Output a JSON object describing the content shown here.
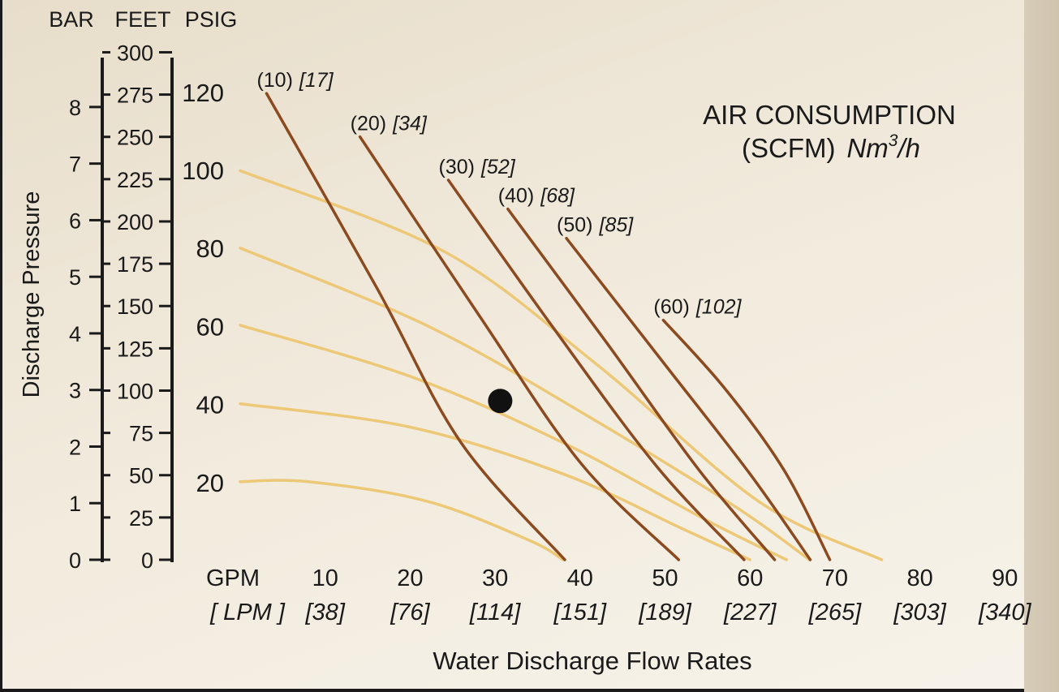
{
  "chart_data": {
    "type": "line",
    "title": "AIR CONSUMPTION",
    "subtitle": {
      "prefix": "(SCFM)",
      "unit": "Nm",
      "sup": "3",
      "suffix": "/h"
    },
    "xlabel": "Water Discharge Flow Rates",
    "ylabel": "Discharge Pressure",
    "axis_headers": {
      "bar": "BAR",
      "feet": "FEET",
      "psig": "PSIG"
    },
    "x_axis": {
      "unit_primary": "GPM",
      "unit_secondary": "[ LPM ]",
      "ticks": [
        {
          "gpm": 10,
          "lpm": "[38]"
        },
        {
          "gpm": 20,
          "lpm": "[76]"
        },
        {
          "gpm": 30,
          "lpm": "[114]"
        },
        {
          "gpm": 40,
          "lpm": "[151]"
        },
        {
          "gpm": 50,
          "lpm": "[189]"
        },
        {
          "gpm": 60,
          "lpm": "[227]"
        },
        {
          "gpm": 70,
          "lpm": "[265]"
        },
        {
          "gpm": 80,
          "lpm": "[303]"
        },
        {
          "gpm": 90,
          "lpm": "[340]"
        }
      ],
      "xlim": [
        0,
        92
      ]
    },
    "y_axes": {
      "bar": [
        0,
        1,
        2,
        3,
        4,
        5,
        6,
        7,
        8
      ],
      "feet": [
        0,
        25,
        50,
        75,
        100,
        125,
        150,
        175,
        200,
        225,
        250,
        275,
        300
      ],
      "psig": [
        20,
        40,
        60,
        80,
        100,
        120
      ],
      "ylim_psig": [
        0,
        128
      ]
    },
    "air_curves": [
      {
        "label": "(10)",
        "metric": "[17]",
        "points": [
          [
            3.1,
            119.5
          ],
          [
            16,
            70
          ],
          [
            26,
            30
          ],
          [
            38.2,
            0
          ]
        ]
      },
      {
        "label": "(20)",
        "metric": "[34]",
        "points": [
          [
            14.1,
            108.4
          ],
          [
            28,
            63
          ],
          [
            40,
            25
          ],
          [
            51.6,
            0
          ]
        ]
      },
      {
        "label": "(30)",
        "metric": "[52]",
        "points": [
          [
            24.5,
            97.3
          ],
          [
            37,
            59
          ],
          [
            49,
            24
          ],
          [
            59.3,
            0
          ]
        ]
      },
      {
        "label": "(40)",
        "metric": "[68]",
        "points": [
          [
            31.5,
            89.9
          ],
          [
            43,
            56
          ],
          [
            54,
            23
          ],
          [
            62.9,
            0
          ]
        ]
      },
      {
        "label": "(50)",
        "metric": "[85]",
        "points": [
          [
            38.4,
            82.4
          ],
          [
            50,
            50
          ],
          [
            60,
            22
          ],
          [
            67.1,
            0
          ]
        ]
      },
      {
        "label": "(60)",
        "metric": "[102]",
        "points": [
          [
            49.8,
            61.4
          ],
          [
            57,
            44
          ],
          [
            64,
            23
          ],
          [
            69.4,
            0
          ]
        ]
      }
    ],
    "pressure_curves": [
      {
        "points": [
          [
            0,
            99.7
          ],
          [
            24,
            79
          ],
          [
            42,
            50
          ],
          [
            61,
            15
          ],
          [
            75.5,
            0
          ]
        ]
      },
      {
        "points": [
          [
            0,
            79.9
          ],
          [
            22,
            60
          ],
          [
            40,
            38
          ],
          [
            58,
            14
          ],
          [
            67,
            0
          ]
        ]
      },
      {
        "points": [
          [
            0,
            60.1
          ],
          [
            20,
            47
          ],
          [
            38,
            30
          ],
          [
            55,
            10
          ],
          [
            64.3,
            0
          ]
        ]
      },
      {
        "points": [
          [
            0,
            40.0
          ],
          [
            20,
            34
          ],
          [
            38,
            22
          ],
          [
            52,
            8
          ],
          [
            60,
            0
          ]
        ]
      },
      {
        "points": [
          [
            0,
            20.0
          ],
          [
            8,
            20
          ],
          [
            22,
            15
          ],
          [
            34,
            5
          ],
          [
            38,
            0
          ]
        ]
      }
    ],
    "operating_point": {
      "gpm": 30.6,
      "psig": 40.7
    },
    "colors": {
      "air_curve": "#8b4a20",
      "pressure_curve": "#ecc877",
      "axis": "#1a1a1a"
    }
  }
}
